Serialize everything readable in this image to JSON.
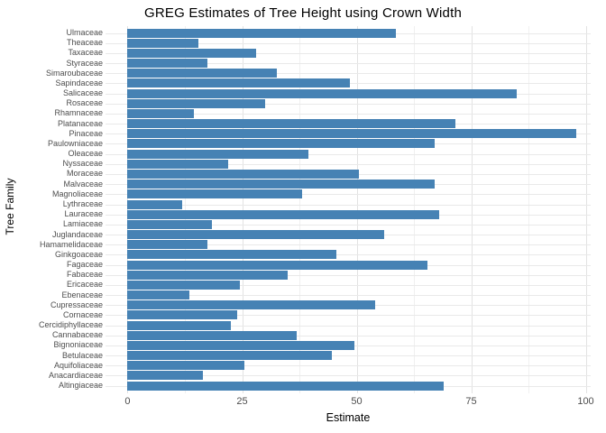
{
  "chart_data": {
    "type": "bar",
    "orientation": "horizontal",
    "title": "GREG Estimates of Tree Height using Crown Width",
    "xlabel": "Estimate",
    "ylabel": "Tree Family",
    "xlim": [
      0,
      100
    ],
    "x_major_ticks": [
      0,
      25,
      50,
      75,
      100
    ],
    "x_tick_labels": [
      "0",
      "25",
      "50",
      "75",
      "100"
    ],
    "x_minor_ticks": [
      12.5,
      37.5,
      62.5,
      87.5
    ],
    "grid": true,
    "legend": false,
    "categories": [
      "Ulmaceae",
      "Theaceae",
      "Taxaceae",
      "Styraceae",
      "Simaroubaceae",
      "Sapindaceae",
      "Salicaceae",
      "Rosaceae",
      "Rhamnaceae",
      "Platanaceae",
      "Pinaceae",
      "Paulowniaceae",
      "Oleaceae",
      "Nyssaceae",
      "Moraceae",
      "Malvaceae",
      "Magnoliaceae",
      "Lythraceae",
      "Lauraceae",
      "Lamiaceae",
      "Juglandaceae",
      "Hamamelidaceae",
      "Ginkgoaceae",
      "Fagaceae",
      "Fabaceae",
      "Ericaceae",
      "Ebenaceae",
      "Cupressaceae",
      "Cornaceae",
      "Cercidiphyllaceae",
      "Cannabaceae",
      "Bignoniaceae",
      "Betulaceae",
      "Aquifoliaceae",
      "Anacardiaceae",
      "Altingiaceae"
    ],
    "values": [
      58.5,
      15.5,
      28,
      17.5,
      32.5,
      48.5,
      85,
      30,
      14.5,
      71.5,
      98,
      67,
      39.5,
      22,
      50.5,
      67,
      38,
      12,
      68,
      18.5,
      56,
      17.5,
      45.5,
      65.5,
      35,
      24.5,
      13.5,
      54,
      24,
      22.5,
      37,
      49.5,
      44.5,
      25.5,
      16.5,
      69
    ]
  },
  "colors": {
    "bar": "#4682B4",
    "grid_major": "#e2e2e2",
    "grid_minor": "#f0f0f0",
    "row_grid": "#e9e9e9",
    "tick_text": "#4d4d4d",
    "title_text": "#000000"
  }
}
